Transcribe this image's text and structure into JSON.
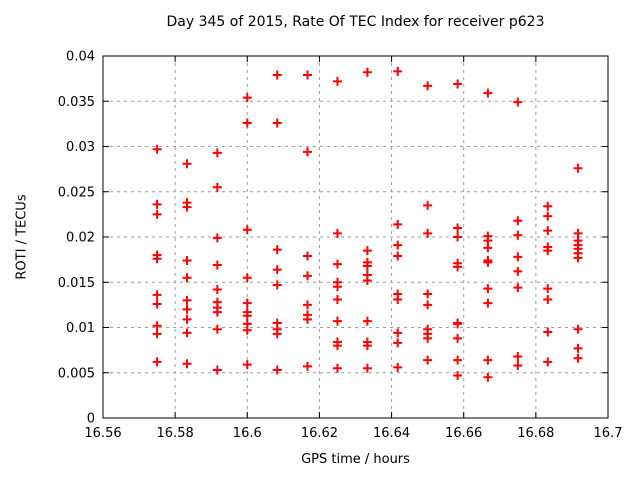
{
  "chart_data": {
    "type": "scatter",
    "title": "Day 345 of 2015, Rate Of TEC Index for receiver p623",
    "xlabel": "GPS time / hours",
    "ylabel": "ROTI / TECUs",
    "xlim": [
      16.56,
      16.7
    ],
    "ylim": [
      0,
      0.04
    ],
    "xticks": [
      16.56,
      16.58,
      16.6,
      16.62,
      16.64,
      16.66,
      16.68,
      16.7
    ],
    "xtick_labels": [
      "16.56",
      "16.58",
      "16.6",
      "16.62",
      "16.64",
      "16.66",
      "16.68",
      "16.7"
    ],
    "yticks": [
      0,
      0.005,
      0.01,
      0.015,
      0.02,
      0.025,
      0.03,
      0.035,
      0.04
    ],
    "ytick_labels": [
      "0",
      "0.005",
      "0.01",
      "0.015",
      "0.02",
      "0.025",
      "0.03",
      "0.035",
      "0.04"
    ],
    "grid": true,
    "legend": "none",
    "marker": "plus",
    "marker_color": "#ff0000",
    "grid_color": "#9e9e9e",
    "axis_color": "#000000",
    "background_color": "#ffffff",
    "points": [
      [
        16.575,
        0.0297
      ],
      [
        16.575,
        0.0236
      ],
      [
        16.575,
        0.0225
      ],
      [
        16.575,
        0.018
      ],
      [
        16.575,
        0.0176
      ],
      [
        16.575,
        0.0136
      ],
      [
        16.575,
        0.0126
      ],
      [
        16.575,
        0.0102
      ],
      [
        16.575,
        0.0093
      ],
      [
        16.575,
        0.0062
      ],
      [
        16.5833,
        0.0281
      ],
      [
        16.5833,
        0.0238
      ],
      [
        16.5833,
        0.0233
      ],
      [
        16.5833,
        0.0174
      ],
      [
        16.5833,
        0.0155
      ],
      [
        16.5833,
        0.013
      ],
      [
        16.5833,
        0.012
      ],
      [
        16.5833,
        0.0109
      ],
      [
        16.5833,
        0.0094
      ],
      [
        16.5833,
        0.006
      ],
      [
        16.5917,
        0.0293
      ],
      [
        16.5917,
        0.0255
      ],
      [
        16.5917,
        0.0199
      ],
      [
        16.5917,
        0.0169
      ],
      [
        16.5917,
        0.0142
      ],
      [
        16.5917,
        0.0128
      ],
      [
        16.5917,
        0.0122
      ],
      [
        16.5917,
        0.0117
      ],
      [
        16.5917,
        0.0098
      ],
      [
        16.5917,
        0.0053
      ],
      [
        16.6,
        0.0354
      ],
      [
        16.6,
        0.0326
      ],
      [
        16.6,
        0.0208
      ],
      [
        16.6,
        0.0155
      ],
      [
        16.6,
        0.0127
      ],
      [
        16.6,
        0.0117
      ],
      [
        16.6,
        0.0113
      ],
      [
        16.6,
        0.0104
      ],
      [
        16.6,
        0.0097
      ],
      [
        16.6,
        0.0059
      ],
      [
        16.6083,
        0.0379
      ],
      [
        16.6083,
        0.0326
      ],
      [
        16.6083,
        0.0186
      ],
      [
        16.6083,
        0.0164
      ],
      [
        16.6083,
        0.0147
      ],
      [
        16.6083,
        0.0105
      ],
      [
        16.6083,
        0.0098
      ],
      [
        16.6083,
        0.0093
      ],
      [
        16.6083,
        0.0053
      ],
      [
        16.6167,
        0.0379
      ],
      [
        16.6167,
        0.0294
      ],
      [
        16.6167,
        0.0179
      ],
      [
        16.6167,
        0.0157
      ],
      [
        16.6167,
        0.0125
      ],
      [
        16.6167,
        0.0114
      ],
      [
        16.6167,
        0.0109
      ],
      [
        16.6167,
        0.0057
      ],
      [
        16.625,
        0.0372
      ],
      [
        16.625,
        0.0204
      ],
      [
        16.625,
        0.017
      ],
      [
        16.625,
        0.015
      ],
      [
        16.625,
        0.0145
      ],
      [
        16.625,
        0.0131
      ],
      [
        16.625,
        0.0107
      ],
      [
        16.625,
        0.0084
      ],
      [
        16.625,
        0.008
      ],
      [
        16.625,
        0.0055
      ],
      [
        16.6333,
        0.0382
      ],
      [
        16.6333,
        0.0185
      ],
      [
        16.6333,
        0.0172
      ],
      [
        16.6333,
        0.0168
      ],
      [
        16.6333,
        0.0158
      ],
      [
        16.6333,
        0.0152
      ],
      [
        16.6333,
        0.0107
      ],
      [
        16.6333,
        0.0084
      ],
      [
        16.6333,
        0.008
      ],
      [
        16.6333,
        0.0055
      ],
      [
        16.6417,
        0.0383
      ],
      [
        16.6417,
        0.0214
      ],
      [
        16.6417,
        0.0191
      ],
      [
        16.6417,
        0.0179
      ],
      [
        16.6417,
        0.0137
      ],
      [
        16.6417,
        0.0131
      ],
      [
        16.6417,
        0.0094
      ],
      [
        16.6417,
        0.0083
      ],
      [
        16.6417,
        0.0056
      ],
      [
        16.65,
        0.0367
      ],
      [
        16.65,
        0.0235
      ],
      [
        16.65,
        0.0204
      ],
      [
        16.65,
        0.0137
      ],
      [
        16.65,
        0.0125
      ],
      [
        16.65,
        0.0098
      ],
      [
        16.65,
        0.0093
      ],
      [
        16.65,
        0.0088
      ],
      [
        16.65,
        0.0064
      ],
      [
        16.6583,
        0.0369
      ],
      [
        16.6583,
        0.021
      ],
      [
        16.6583,
        0.02
      ],
      [
        16.6583,
        0.0171
      ],
      [
        16.6583,
        0.0167
      ],
      [
        16.6583,
        0.0105
      ],
      [
        16.6583,
        0.0104
      ],
      [
        16.6583,
        0.0088
      ],
      [
        16.6583,
        0.0064
      ],
      [
        16.6583,
        0.0047
      ],
      [
        16.6667,
        0.0359
      ],
      [
        16.6667,
        0.0201
      ],
      [
        16.6667,
        0.0196
      ],
      [
        16.6667,
        0.0188
      ],
      [
        16.6667,
        0.0174
      ],
      [
        16.6667,
        0.0172
      ],
      [
        16.6667,
        0.0143
      ],
      [
        16.6667,
        0.0127
      ],
      [
        16.6667,
        0.0064
      ],
      [
        16.6667,
        0.0045
      ],
      [
        16.675,
        0.0349
      ],
      [
        16.675,
        0.0218
      ],
      [
        16.675,
        0.0202
      ],
      [
        16.675,
        0.0178
      ],
      [
        16.675,
        0.0162
      ],
      [
        16.675,
        0.0144
      ],
      [
        16.675,
        0.0068
      ],
      [
        16.675,
        0.0058
      ],
      [
        16.6833,
        0.0234
      ],
      [
        16.6833,
        0.0223
      ],
      [
        16.6833,
        0.0207
      ],
      [
        16.6833,
        0.0189
      ],
      [
        16.6833,
        0.0185
      ],
      [
        16.6833,
        0.0143
      ],
      [
        16.6833,
        0.0131
      ],
      [
        16.6833,
        0.0095
      ],
      [
        16.6833,
        0.0062
      ],
      [
        16.6917,
        0.0276
      ],
      [
        16.6917,
        0.0204
      ],
      [
        16.6917,
        0.0196
      ],
      [
        16.6917,
        0.0191
      ],
      [
        16.6917,
        0.0187
      ],
      [
        16.6917,
        0.0182
      ],
      [
        16.6917,
        0.0177
      ],
      [
        16.6917,
        0.0098
      ],
      [
        16.6917,
        0.0077
      ],
      [
        16.6917,
        0.0066
      ]
    ]
  }
}
